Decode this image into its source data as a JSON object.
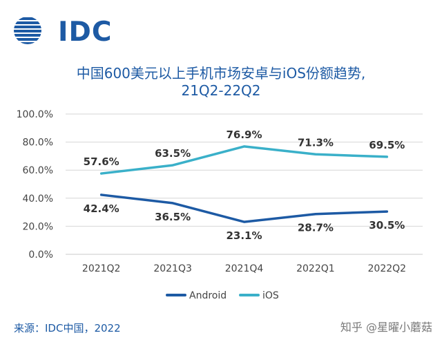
{
  "brand": {
    "logo_text": "IDC",
    "color": "#1d5aa4"
  },
  "title_line1": "中国600美元以上手机市场安卓与iOS份额趋势,",
  "title_line2": "21Q2-22Q2",
  "source": "来源：IDC中国，2022",
  "watermark": "知乎 @星曜小蘑菇",
  "chart_data": {
    "type": "line",
    "categories": [
      "2021Q2",
      "2021Q3",
      "2021Q4",
      "2022Q1",
      "2022Q2"
    ],
    "series": [
      {
        "name": "Android",
        "values": [
          42.4,
          36.5,
          23.1,
          28.7,
          30.5
        ],
        "color": "#1d5aa4",
        "labels": [
          "42.4%",
          "36.5%",
          "23.1%",
          "28.7%",
          "30.5%"
        ]
      },
      {
        "name": "iOS",
        "values": [
          57.6,
          63.5,
          76.9,
          71.3,
          69.5
        ],
        "color": "#3ab0c9",
        "labels": [
          "57.6%",
          "63.5%",
          "76.9%",
          "71.3%",
          "69.5%"
        ]
      }
    ],
    "y_ticks": [
      "0.0%",
      "20.0%",
      "40.0%",
      "60.0%",
      "80.0%",
      "100.0%"
    ],
    "ylim": [
      0,
      100
    ],
    "grid": true,
    "legend": "bottom"
  }
}
